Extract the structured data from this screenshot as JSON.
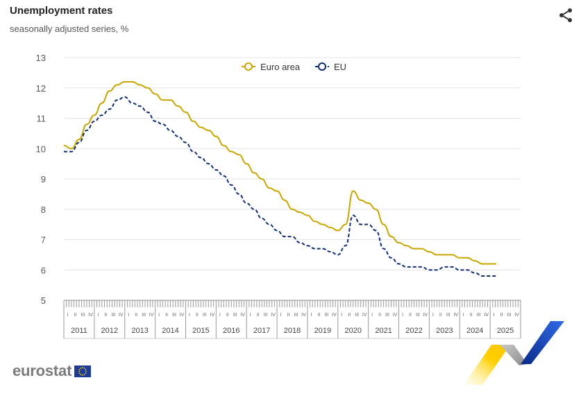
{
  "header": {
    "title": "Unemployment rates",
    "subtitle": "seasonally adjusted series, %"
  },
  "icons": {
    "share": "share-icon"
  },
  "branding": {
    "logo_text": "eurostat",
    "flag": "eu-flag-icon"
  },
  "colors": {
    "euro_area": "#c9a500",
    "eu": "#0e2c6f",
    "grid": "#e3e3e3"
  },
  "chart_data": {
    "type": "line",
    "title": "Unemployment rates",
    "subtitle": "seasonally adjusted series, %",
    "xlabel": "",
    "ylabel": "",
    "ylim": [
      5,
      13
    ],
    "yticks": [
      5,
      6,
      7,
      8,
      9,
      10,
      11,
      12,
      13
    ],
    "xlim": [
      2011.0,
      2026.0
    ],
    "years": [
      "2011",
      "2012",
      "2013",
      "2014",
      "2015",
      "2016",
      "2017",
      "2018",
      "2019",
      "2020",
      "2021",
      "2022",
      "2023",
      "2024",
      "2025"
    ],
    "quarters": [
      "I",
      "II",
      "III",
      "IV"
    ],
    "grid": true,
    "legend_position": "top-center",
    "series": [
      {
        "name": "Euro area",
        "style": "solid",
        "color": "#c9a500",
        "x": [
          2011.0,
          2011.25,
          2011.5,
          2011.75,
          2012.0,
          2012.25,
          2012.5,
          2012.75,
          2013.0,
          2013.25,
          2013.5,
          2013.75,
          2014.0,
          2014.25,
          2014.5,
          2014.75,
          2015.0,
          2015.25,
          2015.5,
          2015.75,
          2016.0,
          2016.25,
          2016.5,
          2016.75,
          2017.0,
          2017.25,
          2017.5,
          2017.75,
          2018.0,
          2018.25,
          2018.5,
          2018.75,
          2019.0,
          2019.25,
          2019.5,
          2019.75,
          2020.0,
          2020.25,
          2020.5,
          2020.75,
          2021.0,
          2021.25,
          2021.5,
          2021.75,
          2022.0,
          2022.25,
          2022.5,
          2022.75,
          2023.0,
          2023.25,
          2023.5,
          2023.75,
          2024.0,
          2024.25,
          2024.5,
          2024.75,
          2025.0,
          2025.2
        ],
        "y": [
          10.1,
          10.0,
          10.3,
          10.8,
          11.1,
          11.5,
          11.9,
          12.1,
          12.2,
          12.2,
          12.1,
          12.0,
          11.8,
          11.6,
          11.6,
          11.4,
          11.2,
          10.9,
          10.7,
          10.6,
          10.4,
          10.1,
          9.9,
          9.8,
          9.5,
          9.2,
          9.0,
          8.7,
          8.6,
          8.3,
          8.0,
          7.9,
          7.8,
          7.6,
          7.5,
          7.4,
          7.3,
          7.5,
          8.6,
          8.3,
          8.2,
          8.0,
          7.5,
          7.1,
          6.9,
          6.8,
          6.7,
          6.7,
          6.6,
          6.5,
          6.5,
          6.5,
          6.4,
          6.4,
          6.3,
          6.2,
          6.2,
          6.2
        ]
      },
      {
        "name": "EU",
        "style": "dashed",
        "color": "#0e2c6f",
        "x": [
          2011.0,
          2011.25,
          2011.5,
          2011.75,
          2012.0,
          2012.25,
          2012.5,
          2012.75,
          2013.0,
          2013.25,
          2013.5,
          2013.75,
          2014.0,
          2014.25,
          2014.5,
          2014.75,
          2015.0,
          2015.25,
          2015.5,
          2015.75,
          2016.0,
          2016.25,
          2016.5,
          2016.75,
          2017.0,
          2017.25,
          2017.5,
          2017.75,
          2018.0,
          2018.25,
          2018.5,
          2018.75,
          2019.0,
          2019.25,
          2019.5,
          2019.75,
          2020.0,
          2020.25,
          2020.5,
          2020.75,
          2021.0,
          2021.25,
          2021.5,
          2021.75,
          2022.0,
          2022.25,
          2022.5,
          2022.75,
          2023.0,
          2023.25,
          2023.5,
          2023.75,
          2024.0,
          2024.25,
          2024.5,
          2024.75,
          2025.0,
          2025.2
        ],
        "y": [
          9.9,
          9.9,
          10.2,
          10.6,
          10.9,
          11.1,
          11.3,
          11.6,
          11.7,
          11.5,
          11.4,
          11.2,
          10.9,
          10.8,
          10.6,
          10.4,
          10.2,
          9.9,
          9.7,
          9.5,
          9.3,
          9.1,
          8.8,
          8.5,
          8.2,
          8.0,
          7.7,
          7.5,
          7.3,
          7.1,
          7.1,
          6.9,
          6.8,
          6.7,
          6.7,
          6.6,
          6.5,
          6.8,
          7.8,
          7.5,
          7.5,
          7.3,
          6.7,
          6.4,
          6.2,
          6.1,
          6.1,
          6.1,
          6.0,
          6.0,
          6.1,
          6.1,
          6.0,
          6.0,
          5.9,
          5.8,
          5.8,
          5.8
        ]
      }
    ]
  }
}
